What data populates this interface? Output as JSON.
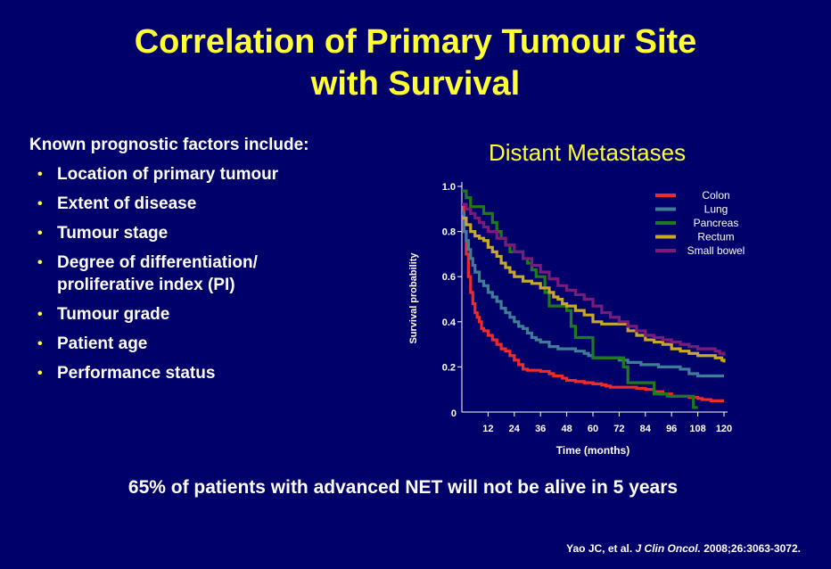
{
  "slide": {
    "title_line1": "Correlation of Primary Tumour Site",
    "title_line2": "with Survival",
    "factors_heading": "Known prognostic factors include:",
    "bullet_glyph": "•",
    "factors": [
      "Location of primary tumour",
      "Extent of disease",
      "Tumour stage",
      "Degree of differentiation/ proliferative index (PI)",
      "Tumour grade",
      "Patient age",
      "Performance status"
    ],
    "summary": "65% of patients with advanced NET will not be alive in 5 years",
    "citation_authors": "Yao JC, et al.",
    "citation_journal": "J Clin Oncol.",
    "citation_ref": "2008;26:3063-3072.",
    "background_color": "#00006b",
    "title_color": "#ffff33"
  },
  "chart_data": {
    "type": "line",
    "step": true,
    "title": "Distant Metastases",
    "xlabel": "Time (months)",
    "ylabel": "Survival probability",
    "xlim": [
      0,
      120
    ],
    "ylim": [
      0,
      1.0
    ],
    "xticks": [
      "12",
      "24",
      "36",
      "48",
      "60",
      "72",
      "84",
      "96",
      "108",
      "120"
    ],
    "xtick_values": [
      12,
      24,
      36,
      48,
      60,
      72,
      84,
      96,
      108,
      120
    ],
    "origin_label": "0",
    "yticks": [
      "0.2",
      "0.4",
      "0.6",
      "0.8",
      "1.0"
    ],
    "ytick_values": [
      0.2,
      0.4,
      0.6,
      0.8,
      1.0
    ],
    "legend_position": "top-right",
    "series": [
      {
        "name": "Colon",
        "color": "#ee2a2a",
        "points": [
          [
            0,
            0.92
          ],
          [
            1,
            0.8
          ],
          [
            2,
            0.7
          ],
          [
            3,
            0.6
          ],
          [
            4,
            0.53
          ],
          [
            5,
            0.48
          ],
          [
            6,
            0.44
          ],
          [
            7,
            0.42
          ],
          [
            8,
            0.4
          ],
          [
            9,
            0.37
          ],
          [
            10,
            0.36
          ],
          [
            12,
            0.34
          ],
          [
            14,
            0.32
          ],
          [
            16,
            0.3
          ],
          [
            18,
            0.28
          ],
          [
            20,
            0.27
          ],
          [
            22,
            0.25
          ],
          [
            24,
            0.23
          ],
          [
            26,
            0.21
          ],
          [
            28,
            0.19
          ],
          [
            30,
            0.185
          ],
          [
            36,
            0.18
          ],
          [
            40,
            0.17
          ],
          [
            42,
            0.16
          ],
          [
            46,
            0.15
          ],
          [
            48,
            0.14
          ],
          [
            52,
            0.135
          ],
          [
            56,
            0.13
          ],
          [
            60,
            0.125
          ],
          [
            64,
            0.12
          ],
          [
            66,
            0.115
          ],
          [
            68,
            0.11
          ],
          [
            72,
            0.11
          ],
          [
            76,
            0.11
          ],
          [
            80,
            0.105
          ],
          [
            84,
            0.1
          ],
          [
            88,
            0.09
          ],
          [
            92,
            0.08
          ],
          [
            96,
            0.07
          ],
          [
            104,
            0.065
          ],
          [
            108,
            0.06
          ],
          [
            110,
            0.055
          ],
          [
            114,
            0.05
          ],
          [
            120,
            0.05
          ]
        ]
      },
      {
        "name": "Lung",
        "color": "#3f7c96",
        "points": [
          [
            0,
            0.88
          ],
          [
            1,
            0.8
          ],
          [
            2,
            0.76
          ],
          [
            3,
            0.72
          ],
          [
            4,
            0.68
          ],
          [
            5,
            0.65
          ],
          [
            6,
            0.62
          ],
          [
            8,
            0.58
          ],
          [
            10,
            0.56
          ],
          [
            12,
            0.53
          ],
          [
            14,
            0.51
          ],
          [
            16,
            0.49
          ],
          [
            18,
            0.46
          ],
          [
            20,
            0.44
          ],
          [
            22,
            0.42
          ],
          [
            24,
            0.4
          ],
          [
            26,
            0.38
          ],
          [
            28,
            0.37
          ],
          [
            30,
            0.35
          ],
          [
            32,
            0.33
          ],
          [
            34,
            0.32
          ],
          [
            36,
            0.31
          ],
          [
            40,
            0.29
          ],
          [
            44,
            0.28
          ],
          [
            48,
            0.28
          ],
          [
            52,
            0.27
          ],
          [
            56,
            0.26
          ],
          [
            58,
            0.25
          ],
          [
            60,
            0.24
          ],
          [
            70,
            0.24
          ],
          [
            72,
            0.23
          ],
          [
            76,
            0.22
          ],
          [
            82,
            0.21
          ],
          [
            90,
            0.2
          ],
          [
            96,
            0.2
          ],
          [
            100,
            0.19
          ],
          [
            104,
            0.17
          ],
          [
            108,
            0.16
          ],
          [
            120,
            0.16
          ]
        ]
      },
      {
        "name": "Pancreas",
        "color": "#1e7a1e",
        "points": [
          [
            0,
            0.98
          ],
          [
            2,
            0.95
          ],
          [
            4,
            0.91
          ],
          [
            10,
            0.88
          ],
          [
            14,
            0.84
          ],
          [
            16,
            0.8
          ],
          [
            18,
            0.77
          ],
          [
            20,
            0.74
          ],
          [
            22,
            0.71
          ],
          [
            28,
            0.68
          ],
          [
            30,
            0.66
          ],
          [
            32,
            0.63
          ],
          [
            34,
            0.6
          ],
          [
            38,
            0.53
          ],
          [
            40,
            0.47
          ],
          [
            44,
            0.47
          ],
          [
            48,
            0.45
          ],
          [
            50,
            0.38
          ],
          [
            52,
            0.33
          ],
          [
            58,
            0.33
          ],
          [
            60,
            0.24
          ],
          [
            72,
            0.24
          ],
          [
            74,
            0.2
          ],
          [
            76,
            0.13
          ],
          [
            86,
            0.13
          ],
          [
            88,
            0.08
          ],
          [
            90,
            0.08
          ],
          [
            94,
            0.07
          ],
          [
            104,
            0.07
          ],
          [
            106,
            0.02
          ],
          [
            108,
            0.02
          ]
        ]
      },
      {
        "name": "Rectum",
        "color": "#c8a82a",
        "points": [
          [
            0,
            0.86
          ],
          [
            2,
            0.83
          ],
          [
            4,
            0.8
          ],
          [
            6,
            0.78
          ],
          [
            8,
            0.77
          ],
          [
            10,
            0.76
          ],
          [
            12,
            0.73
          ],
          [
            14,
            0.71
          ],
          [
            16,
            0.69
          ],
          [
            18,
            0.66
          ],
          [
            20,
            0.64
          ],
          [
            22,
            0.62
          ],
          [
            24,
            0.6
          ],
          [
            28,
            0.58
          ],
          [
            32,
            0.57
          ],
          [
            36,
            0.55
          ],
          [
            40,
            0.53
          ],
          [
            42,
            0.51
          ],
          [
            44,
            0.5
          ],
          [
            46,
            0.48
          ],
          [
            48,
            0.47
          ],
          [
            52,
            0.45
          ],
          [
            56,
            0.43
          ],
          [
            60,
            0.4
          ],
          [
            64,
            0.39
          ],
          [
            72,
            0.39
          ],
          [
            76,
            0.36
          ],
          [
            80,
            0.34
          ],
          [
            84,
            0.32
          ],
          [
            88,
            0.31
          ],
          [
            92,
            0.3
          ],
          [
            96,
            0.28
          ],
          [
            100,
            0.27
          ],
          [
            104,
            0.26
          ],
          [
            108,
            0.25
          ],
          [
            112,
            0.25
          ],
          [
            116,
            0.24
          ],
          [
            119,
            0.23
          ],
          [
            120,
            0.22
          ]
        ]
      },
      {
        "name": "Small bowel",
        "color": "#7a1a7a",
        "points": [
          [
            0,
            0.92
          ],
          [
            2,
            0.9
          ],
          [
            4,
            0.88
          ],
          [
            6,
            0.86
          ],
          [
            8,
            0.84
          ],
          [
            10,
            0.82
          ],
          [
            12,
            0.8
          ],
          [
            16,
            0.77
          ],
          [
            20,
            0.74
          ],
          [
            24,
            0.71
          ],
          [
            28,
            0.68
          ],
          [
            32,
            0.65
          ],
          [
            36,
            0.62
          ],
          [
            40,
            0.59
          ],
          [
            44,
            0.56
          ],
          [
            48,
            0.54
          ],
          [
            52,
            0.52
          ],
          [
            56,
            0.5
          ],
          [
            60,
            0.47
          ],
          [
            64,
            0.44
          ],
          [
            68,
            0.42
          ],
          [
            72,
            0.4
          ],
          [
            76,
            0.38
          ],
          [
            80,
            0.36
          ],
          [
            84,
            0.34
          ],
          [
            88,
            0.33
          ],
          [
            92,
            0.32
          ],
          [
            96,
            0.31
          ],
          [
            100,
            0.3
          ],
          [
            104,
            0.29
          ],
          [
            108,
            0.28
          ],
          [
            112,
            0.28
          ],
          [
            116,
            0.27
          ],
          [
            118,
            0.26
          ],
          [
            120,
            0.25
          ]
        ]
      }
    ]
  }
}
